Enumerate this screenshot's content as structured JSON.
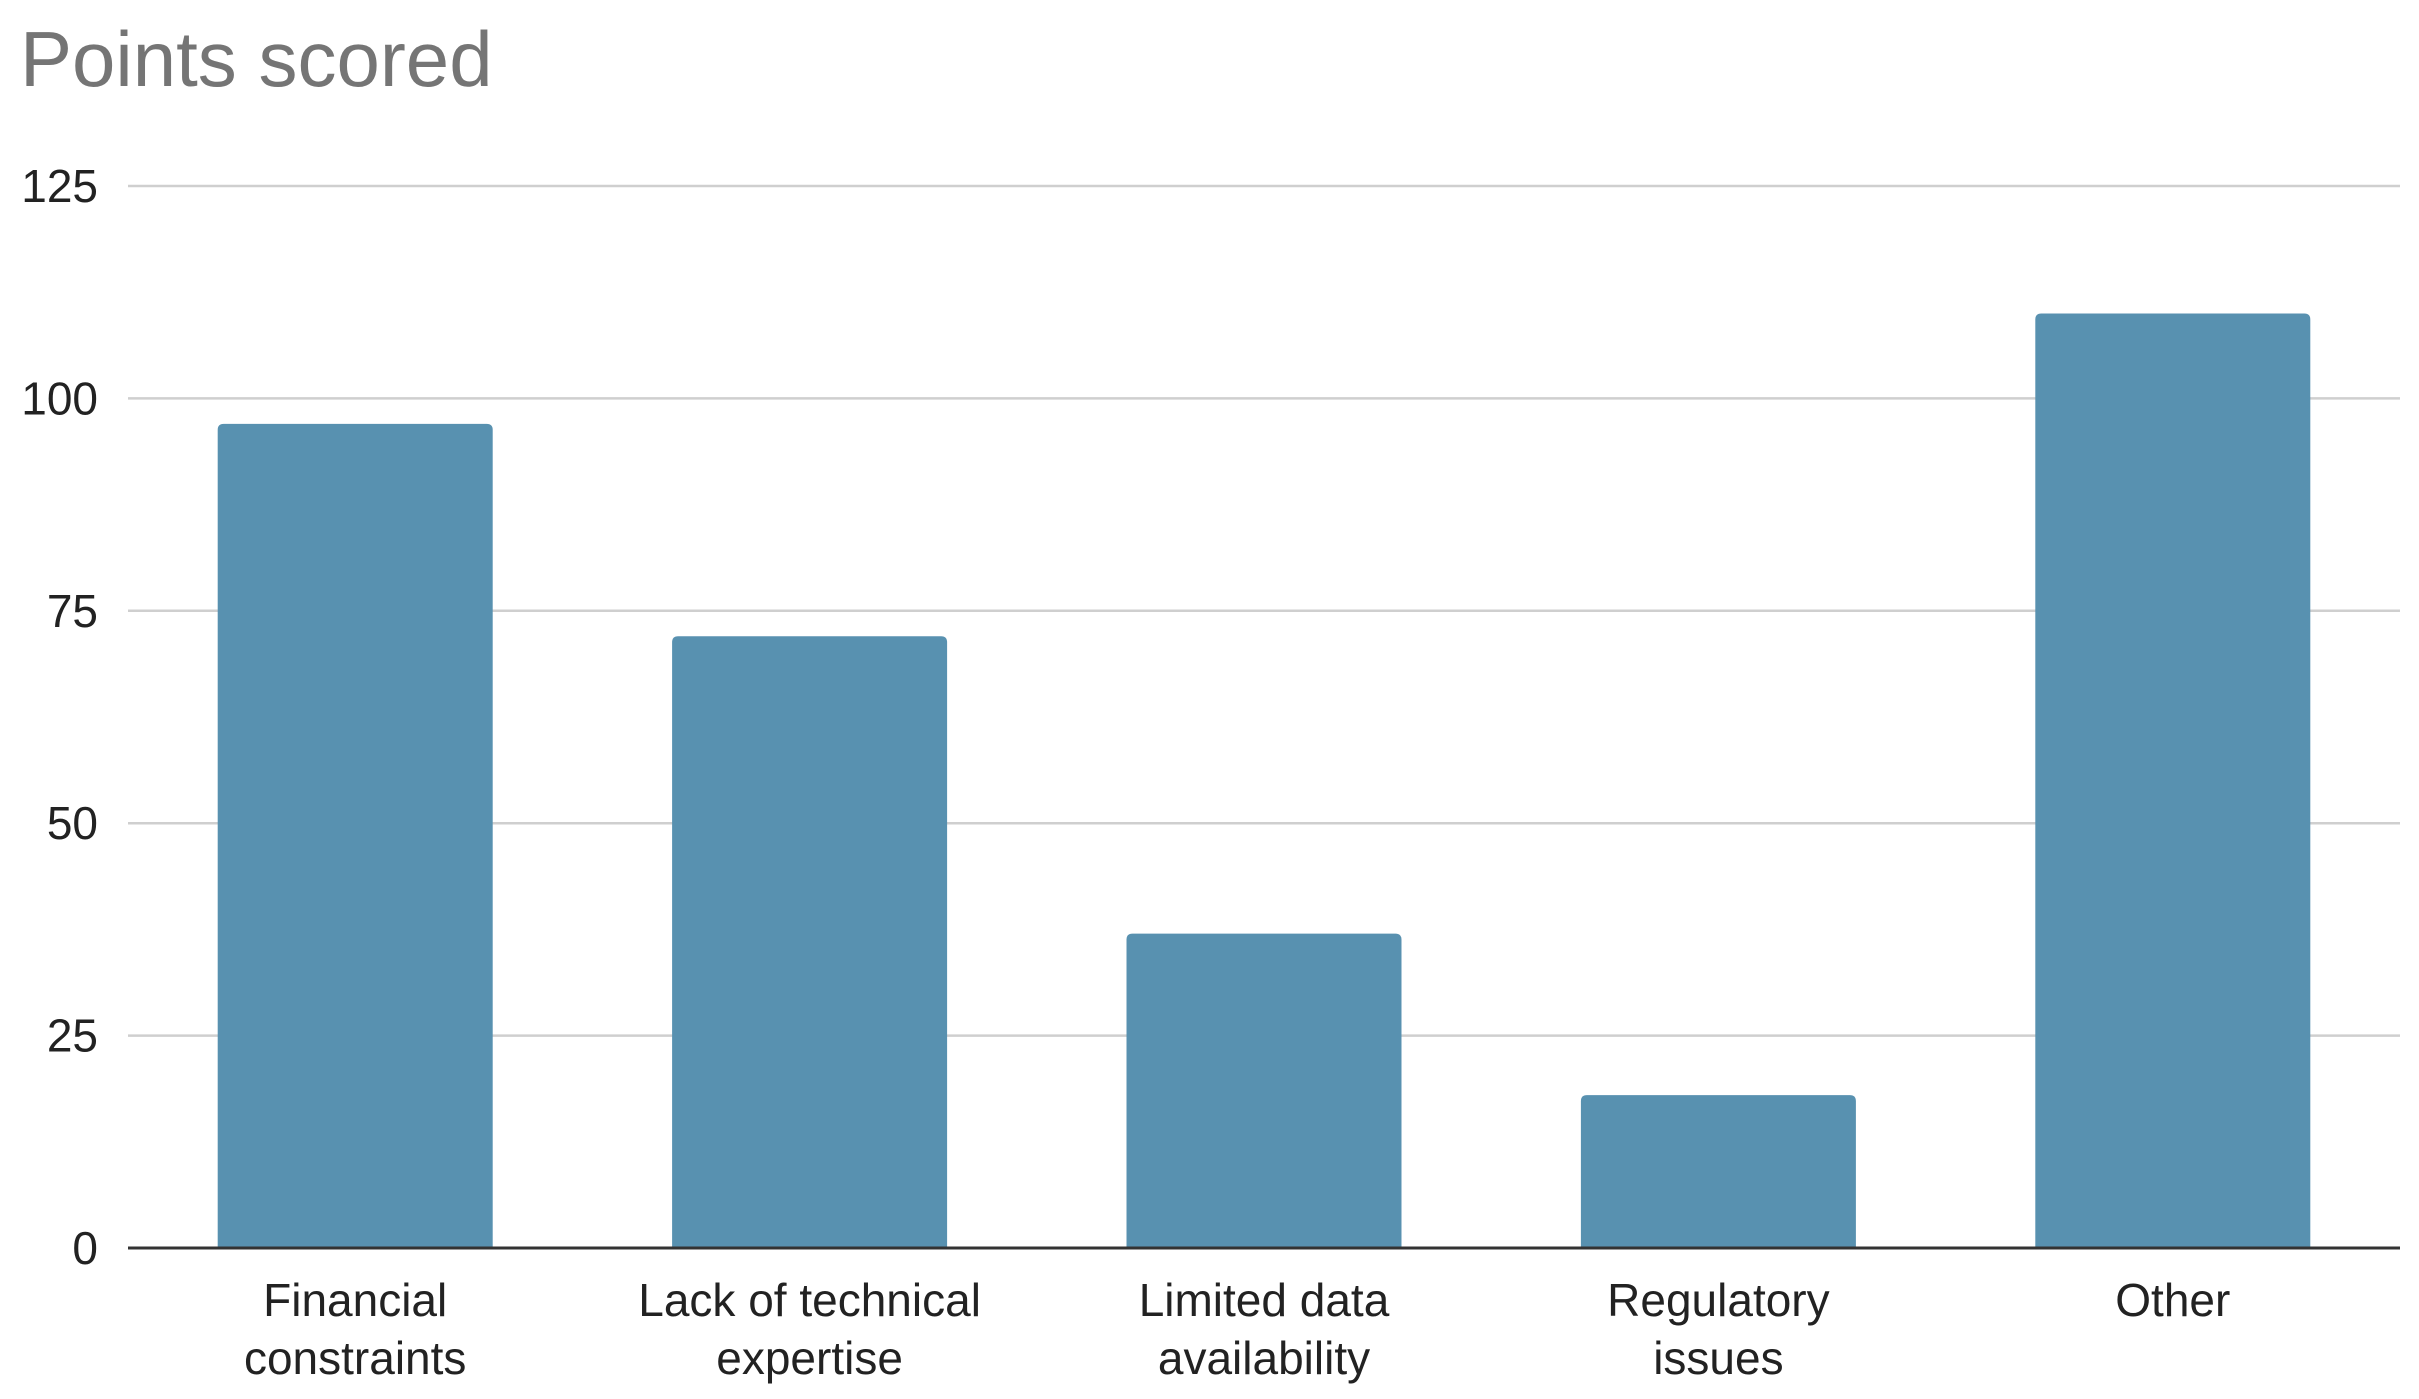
{
  "chart_data": {
    "type": "bar",
    "title": "Points scored",
    "xlabel": "",
    "ylabel": "",
    "categories": [
      [
        "Financial",
        "constraints"
      ],
      [
        "Lack of technical",
        "expertise"
      ],
      [
        "Limited data",
        "availability"
      ],
      [
        "Regulatory",
        "issues"
      ],
      [
        "Other"
      ]
    ],
    "values": [
      97,
      72,
      37,
      18,
      110
    ],
    "ylim": [
      0,
      125
    ],
    "yticks": [
      0,
      25,
      50,
      75,
      100,
      125
    ],
    "grid": true,
    "legend": "none",
    "bar_color": "#5891b0"
  }
}
